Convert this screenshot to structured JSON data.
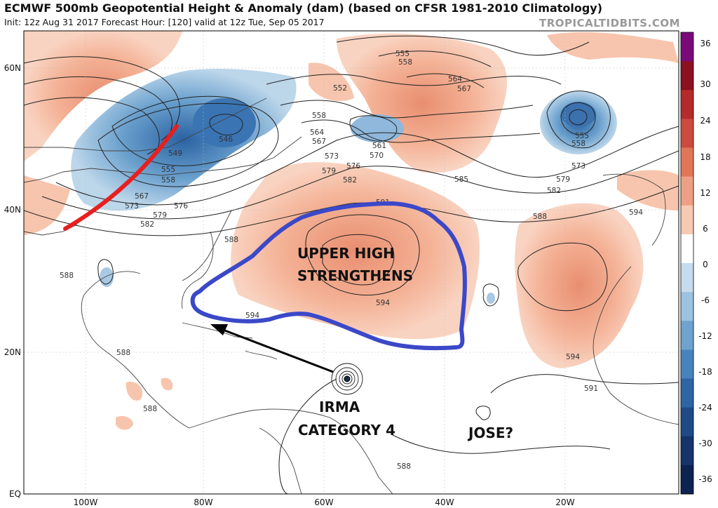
{
  "header": {
    "title": "ECMWF 500mb Geopotential Height & Anomaly (dam) (based on CFSR 1981-2010 Climatology)",
    "subtitle": "Init: 12z Aug 31 2017   Forecast Hour: [120]   valid at 12z Tue, Sep 05 2017",
    "brand": "TROPICALTIDBITS.COM"
  },
  "axes": {
    "lat_labels": [
      "60N",
      "40N",
      "20N",
      "EQ"
    ],
    "lon_labels": [
      "100W",
      "80W",
      "60W",
      "40W",
      "20W"
    ]
  },
  "colorbar": {
    "labels": [
      "36",
      "30",
      "24",
      "18",
      "12",
      "6",
      "0",
      "-6",
      "-12",
      "-18",
      "-24",
      "-30",
      "-36"
    ],
    "colors": [
      "#7a0a7a",
      "#8c1020",
      "#b52a2a",
      "#cc4a3e",
      "#e07656",
      "#eea084",
      "#f6c9b2",
      "#ffffff",
      "#c6dcec",
      "#9cc2e0",
      "#6fa3cf",
      "#4784bd",
      "#2e65a5",
      "#1f4a86",
      "#16336a",
      "#0e2250"
    ]
  },
  "contour_labels": {
    "items": [
      "555",
      "558",
      "552",
      "564",
      "567",
      "558",
      "564",
      "567",
      "561",
      "573",
      "570",
      "576",
      "579",
      "582",
      "585",
      "555",
      "558",
      "573",
      "579",
      "582",
      "549",
      "546",
      "555",
      "558",
      "567",
      "573",
      "576",
      "579",
      "582",
      "588",
      "588",
      "591",
      "594",
      "594",
      "588",
      "594",
      "588",
      "588",
      "591",
      "588"
    ]
  },
  "annotations": {
    "high_line1": "UPPER HIGH",
    "high_line2": "STRENGTHENS",
    "irma_line1": "IRMA",
    "irma_line2": "CATEGORY 4",
    "jose": "JOSE?"
  },
  "colors": {
    "trough_line": "#e62020",
    "high_outline": "#3b48c8",
    "arrow": "#000000",
    "positive_anomaly": "#f7c5ad",
    "negative_anomaly": "#5a93c6"
  }
}
